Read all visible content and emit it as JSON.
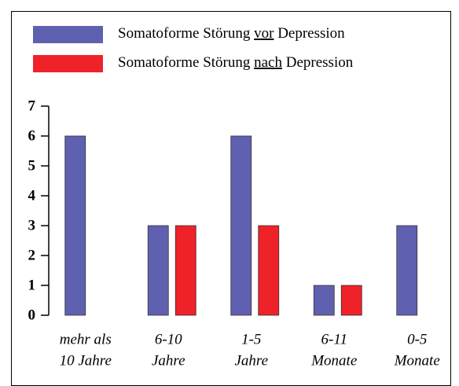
{
  "chart_data": {
    "type": "bar",
    "categories": [
      [
        "mehr als",
        "10 Jahre"
      ],
      [
        "6-10",
        "Jahre"
      ],
      [
        "1-5",
        "Jahre"
      ],
      [
        "6-11",
        "Monate"
      ],
      [
        "0-5",
        "Monate"
      ]
    ],
    "series": [
      {
        "name": "Somatoforme Störung vor Depression",
        "color": "#6060b0",
        "values": [
          6,
          3,
          6,
          1,
          3
        ]
      },
      {
        "name": "Somatoforme Störung nach Depression",
        "color": "#ee2228",
        "values": [
          0,
          3,
          3,
          1,
          0
        ]
      }
    ],
    "ylim": [
      0,
      7
    ],
    "yticks": [
      0,
      1,
      2,
      3,
      4,
      5,
      6,
      7
    ],
    "grid": false
  }
}
